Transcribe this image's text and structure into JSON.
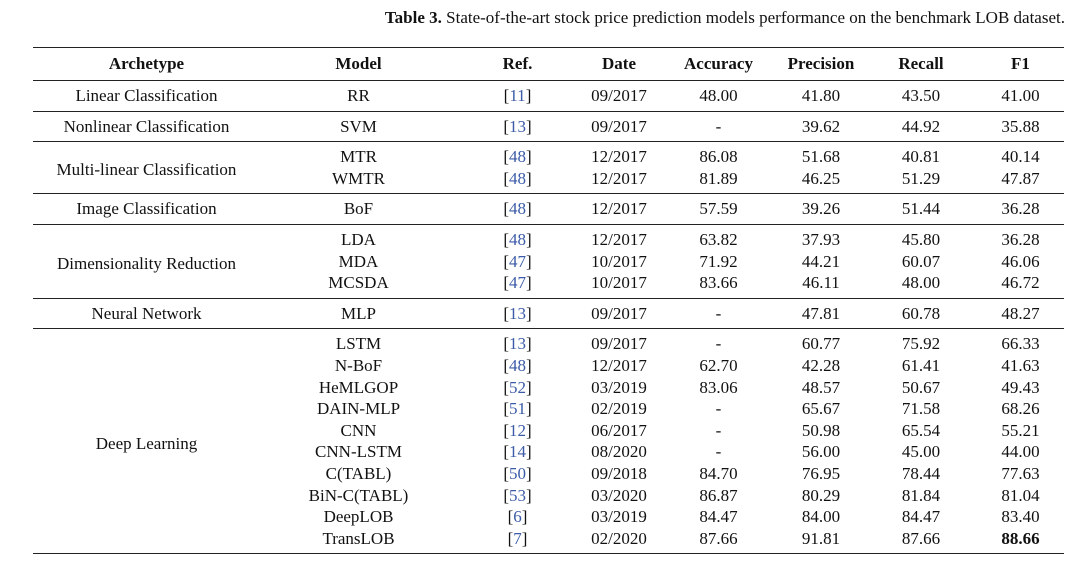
{
  "caption": {
    "label": "Table 3.",
    "text": "State-of-the-art stock price prediction models performance on the benchmark LOB dataset."
  },
  "headers": {
    "archetype": "Archetype",
    "model": "Model",
    "ref": "Ref.",
    "date": "Date",
    "accuracy": "Accuracy",
    "precision": "Precision",
    "recall": "Recall",
    "f1": "F1"
  },
  "groups": [
    {
      "archetype": "Linear Classification",
      "rows": [
        {
          "model": "RR",
          "ref": "11",
          "date": "09/2017",
          "accuracy": "48.00",
          "precision": "41.80",
          "recall": "43.50",
          "f1": "41.00"
        }
      ]
    },
    {
      "archetype": "Nonlinear Classification",
      "rows": [
        {
          "model": "SVM",
          "ref": "13",
          "date": "09/2017",
          "accuracy": "-",
          "precision": "39.62",
          "recall": "44.92",
          "f1": "35.88"
        }
      ]
    },
    {
      "archetype": "Multi-linear Classification",
      "rows": [
        {
          "model": "MTR",
          "ref": "48",
          "date": "12/2017",
          "accuracy": "86.08",
          "precision": "51.68",
          "recall": "40.81",
          "f1": "40.14"
        },
        {
          "model": "WMTR",
          "ref": "48",
          "date": "12/2017",
          "accuracy": "81.89",
          "precision": "46.25",
          "recall": "51.29",
          "f1": "47.87"
        }
      ]
    },
    {
      "archetype": "Image Classification",
      "rows": [
        {
          "model": "BoF",
          "ref": "48",
          "date": "12/2017",
          "accuracy": "57.59",
          "precision": "39.26",
          "recall": "51.44",
          "f1": "36.28"
        }
      ]
    },
    {
      "archetype": "Dimensionality Reduction",
      "rows": [
        {
          "model": "LDA",
          "ref": "48",
          "date": "12/2017",
          "accuracy": "63.82",
          "precision": "37.93",
          "recall": "45.80",
          "f1": "36.28"
        },
        {
          "model": "MDA",
          "ref": "47",
          "date": "10/2017",
          "accuracy": "71.92",
          "precision": "44.21",
          "recall": "60.07",
          "f1": "46.06"
        },
        {
          "model": "MCSDA",
          "ref": "47",
          "date": "10/2017",
          "accuracy": "83.66",
          "precision": "46.11",
          "recall": "48.00",
          "f1": "46.72"
        }
      ]
    },
    {
      "archetype": "Neural Network",
      "rows": [
        {
          "model": "MLP",
          "ref": "13",
          "date": "09/2017",
          "accuracy": "-",
          "precision": "47.81",
          "recall": "60.78",
          "f1": "48.27"
        }
      ]
    },
    {
      "archetype": "Deep Learning",
      "rows": [
        {
          "model": "LSTM",
          "ref": "13",
          "date": "09/2017",
          "accuracy": "-",
          "precision": "60.77",
          "recall": "75.92",
          "f1": "66.33"
        },
        {
          "model": "N-BoF",
          "ref": "48",
          "date": "12/2017",
          "accuracy": "62.70",
          "precision": "42.28",
          "recall": "61.41",
          "f1": "41.63"
        },
        {
          "model": "HeMLGOP",
          "ref": "52",
          "date": "03/2019",
          "accuracy": "83.06",
          "precision": "48.57",
          "recall": "50.67",
          "f1": "49.43"
        },
        {
          "model": "DAIN-MLP",
          "ref": "51",
          "date": "02/2019",
          "accuracy": "-",
          "precision": "65.67",
          "recall": "71.58",
          "f1": "68.26"
        },
        {
          "model": "CNN",
          "ref": "12",
          "date": "06/2017",
          "accuracy": "-",
          "precision": "50.98",
          "recall": "65.54",
          "f1": "55.21"
        },
        {
          "model": "CNN-LSTM",
          "ref": "14",
          "date": "08/2020",
          "accuracy": "-",
          "precision": "56.00",
          "recall": "45.00",
          "f1": "44.00"
        },
        {
          "model": "C(TABL)",
          "ref": "50",
          "date": "09/2018",
          "accuracy": "84.70",
          "precision": "76.95",
          "recall": "78.44",
          "f1": "77.63"
        },
        {
          "model": "BiN-C(TABL)",
          "ref": "53",
          "date": "03/2020",
          "accuracy": "86.87",
          "precision": "80.29",
          "recall": "81.84",
          "f1": "81.04"
        },
        {
          "model": "DeepLOB",
          "ref": "6",
          "date": "03/2019",
          "accuracy": "84.47",
          "precision": "84.00",
          "recall": "84.47",
          "f1": "83.40"
        },
        {
          "model": "TransLOB",
          "ref": "7",
          "date": "02/2020",
          "accuracy": "87.66",
          "precision": "91.81",
          "recall": "87.66",
          "f1": "88.66",
          "f1_bold": true
        }
      ]
    }
  ]
}
